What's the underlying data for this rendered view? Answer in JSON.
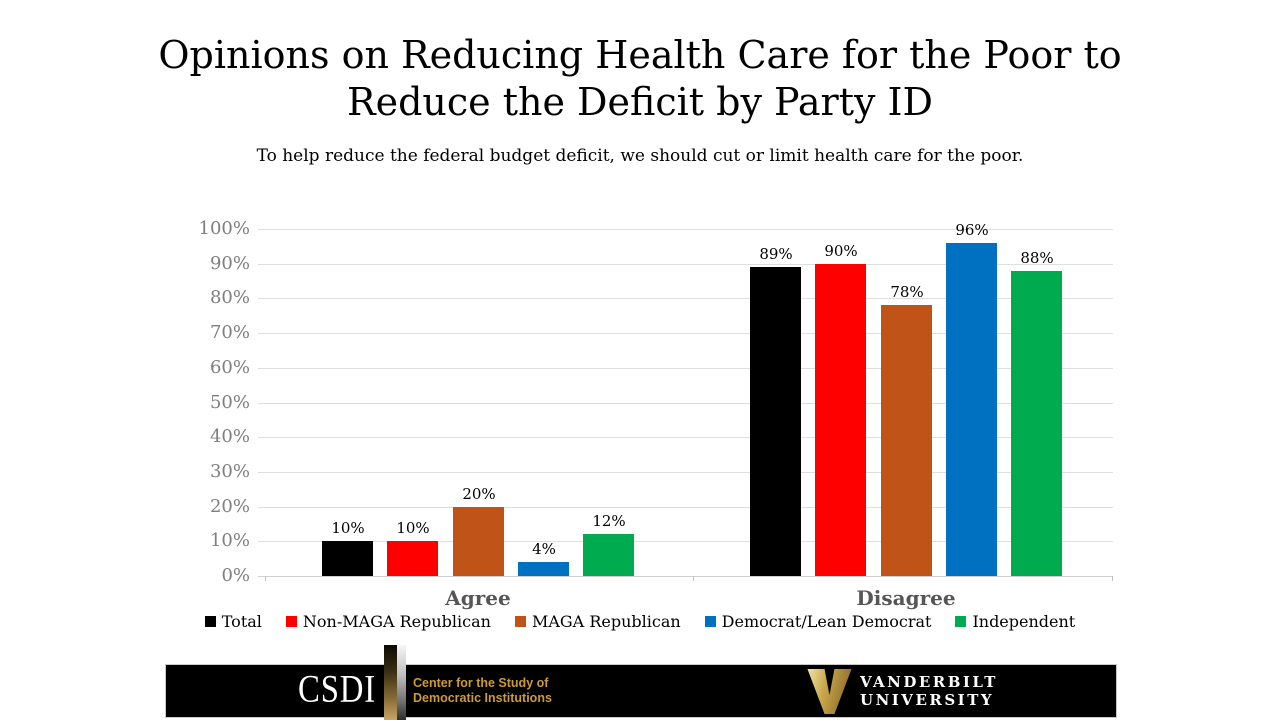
{
  "slide": {
    "title_line1": "Opinions on Reducing Health Care for the Poor to",
    "title_line2": "Reduce the Deficit by Party ID",
    "subtitle": "To help reduce the federal budget deficit, we should cut or limit health care for the poor."
  },
  "chart_data": {
    "type": "bar",
    "categories": [
      "Agree",
      "Disagree"
    ],
    "series": [
      {
        "name": "Total",
        "color": "#000000",
        "values": [
          10,
          89
        ]
      },
      {
        "name": "Non-MAGA Republican",
        "color": "#FF0000",
        "values": [
          10,
          90
        ]
      },
      {
        "name": "MAGA Republican",
        "color": "#C05317",
        "values": [
          20,
          78
        ]
      },
      {
        "name": "Democrat/Lean Democrat",
        "color": "#0070C0",
        "values": [
          4,
          96
        ]
      },
      {
        "name": "Independent",
        "color": "#00AB50",
        "values": [
          12,
          88
        ]
      }
    ],
    "value_suffix": "%",
    "ylim": [
      0,
      100
    ],
    "ytick_step": 10,
    "ytick_labels": [
      "0%",
      "10%",
      "20%",
      "30%",
      "40%",
      "50%",
      "60%",
      "70%",
      "80%",
      "90%",
      "100%"
    ],
    "grid": true,
    "data_labels": true,
    "legend_position": "bottom"
  },
  "footer": {
    "csdi_acronym": "CSDI",
    "csdi_name_line1": "Center for the Study of",
    "csdi_name_line2": "Democratic Institutions",
    "vanderbilt_line1": "VANDERBILT",
    "vanderbilt_line2": "UNIVERSITY",
    "gold": "#CE9B33"
  }
}
